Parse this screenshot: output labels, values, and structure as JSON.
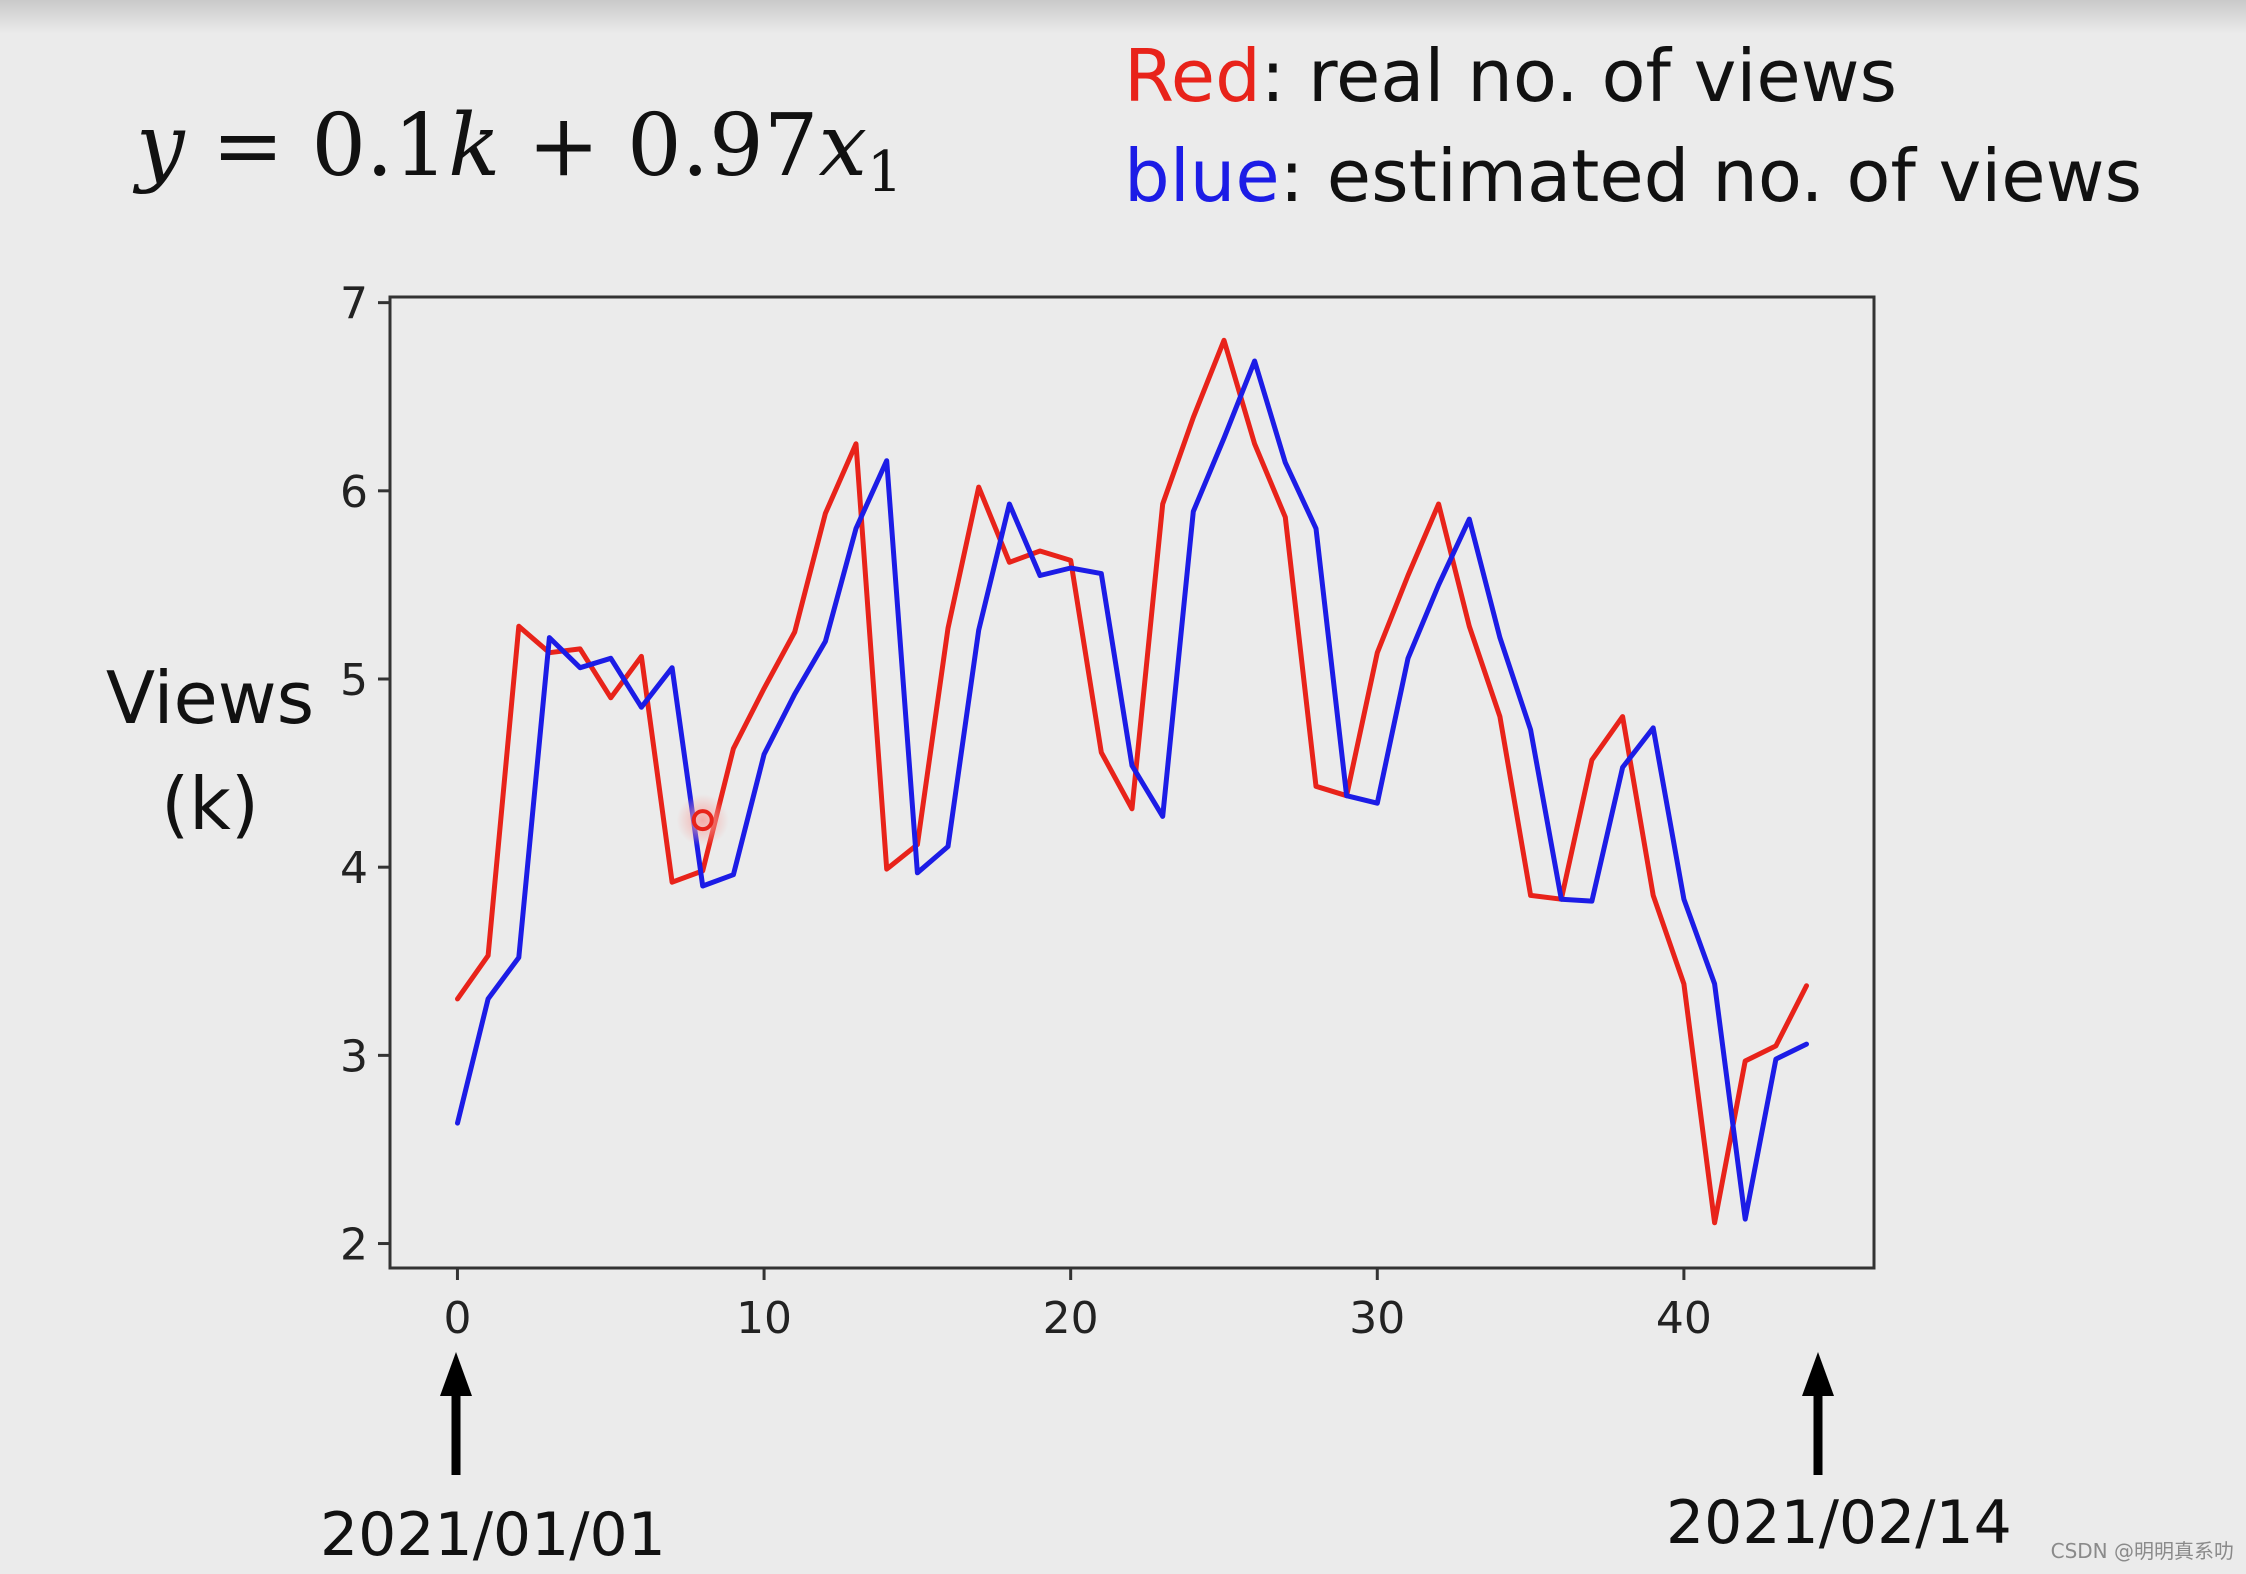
{
  "formula": {
    "y": "y",
    "equals": " = 0.1",
    "k": "k",
    "plus": " + 0.97",
    "x": "x",
    "sub": "1"
  },
  "legend": {
    "red_word": "Red",
    "red_rest": ": real no. of views",
    "blue_word": "blue",
    "blue_rest": ":  estimated no. of views"
  },
  "ylabel": {
    "line1": "Views",
    "line2": "(k)"
  },
  "dates": {
    "start": "2021/01/01",
    "end": "2021/02/14"
  },
  "watermark": "CSDN @明明真系叻",
  "colors": {
    "real": "#e8231a",
    "estimated": "#1c1ce6"
  },
  "chart_data": {
    "type": "line",
    "title": "",
    "xlabel": "",
    "ylabel": "Views (k)",
    "xlim": [
      -2.2,
      46.2
    ],
    "ylim": [
      1.87,
      7.03
    ],
    "x_ticks": [
      0,
      10,
      20,
      30,
      40
    ],
    "y_ticks": [
      2,
      3,
      4,
      5,
      6,
      7
    ],
    "grid": false,
    "x": [
      0,
      1,
      2,
      3,
      4,
      5,
      6,
      7,
      8,
      9,
      10,
      11,
      12,
      13,
      14,
      15,
      16,
      17,
      18,
      19,
      20,
      21,
      22,
      23,
      24,
      25,
      26,
      27,
      28,
      29,
      30,
      31,
      32,
      33,
      34,
      35,
      36,
      37,
      38,
      39,
      40,
      41,
      42,
      43,
      44
    ],
    "series": [
      {
        "name": "real",
        "color": "#e8231a",
        "values": [
          3.3,
          3.53,
          5.28,
          5.14,
          5.16,
          4.9,
          5.12,
          3.92,
          3.98,
          4.63,
          4.95,
          5.25,
          5.88,
          6.25,
          3.99,
          4.12,
          5.27,
          6.02,
          5.62,
          5.68,
          5.63,
          4.61,
          4.31,
          5.93,
          6.39,
          6.8,
          6.25,
          5.86,
          4.43,
          4.38,
          5.14,
          5.55,
          5.93,
          5.28,
          4.8,
          3.85,
          3.83,
          4.57,
          4.8,
          3.85,
          3.38,
          2.11,
          2.97,
          3.05,
          3.37
        ]
      },
      {
        "name": "estimated",
        "color": "#1c1ce6",
        "values": [
          2.64,
          3.3,
          3.52,
          5.22,
          5.06,
          5.11,
          4.85,
          5.06,
          3.9,
          3.96,
          4.6,
          4.92,
          5.2,
          5.8,
          6.16,
          3.97,
          4.11,
          5.26,
          5.93,
          5.55,
          5.59,
          5.56,
          4.54,
          4.27,
          5.89,
          6.28,
          6.69,
          6.15,
          5.8,
          4.38,
          4.34,
          5.11,
          5.5,
          5.85,
          5.22,
          4.73,
          3.83,
          3.82,
          4.53,
          4.74,
          3.83,
          3.38,
          2.13,
          2.98,
          3.06
        ]
      }
    ],
    "marker": {
      "x": 8,
      "y": 4.25,
      "color": "#e8231a"
    }
  }
}
